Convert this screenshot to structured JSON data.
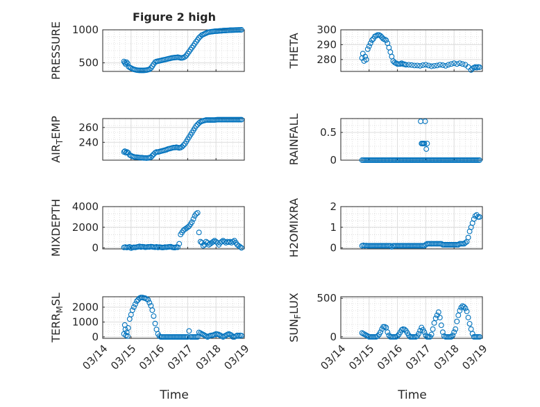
{
  "figure": {
    "title": "Figure 2 high",
    "time_label": "Time"
  },
  "time_ticks": [
    "03/14",
    "03/15",
    "03/16",
    "03/17",
    "03/18",
    "03/19"
  ],
  "colors": {
    "marker": "#0072bd",
    "axes": "#262626",
    "grid": "#dcdcdc"
  },
  "chart_data": [
    {
      "type": "scatter",
      "ylabel": "PRESSURE",
      "title": "Figure 2 high",
      "xlim": [
        0,
        5
      ],
      "ylim": [
        370,
        1000
      ],
      "yticks": [
        500,
        1000
      ],
      "x": [
        0.75,
        0.78,
        0.81,
        0.84,
        0.88,
        0.92,
        0.96,
        1.0,
        1.05,
        1.1,
        1.15,
        1.2,
        1.25,
        1.3,
        1.35,
        1.4,
        1.45,
        1.5,
        1.55,
        1.6,
        1.65,
        1.7,
        1.75,
        1.8,
        1.85,
        1.9,
        1.95,
        2.0,
        2.05,
        2.1,
        2.15,
        2.2,
        2.25,
        2.3,
        2.35,
        2.4,
        2.45,
        2.5,
        2.55,
        2.6,
        2.65,
        2.7,
        2.75,
        2.8,
        2.85,
        2.9,
        2.95,
        3.0,
        3.05,
        3.1,
        3.15,
        3.2,
        3.25,
        3.3,
        3.35,
        3.4,
        3.45,
        3.5,
        3.55,
        3.6,
        3.65,
        3.7,
        3.75,
        3.8,
        3.85,
        3.9,
        3.95,
        4.0,
        4.05,
        4.1,
        4.15,
        4.2,
        4.25,
        4.3,
        4.35,
        4.4,
        4.45,
        4.5,
        4.55,
        4.6,
        4.65,
        4.7,
        4.75,
        4.8,
        4.85,
        4.9
      ],
      "values": [
        520,
        500,
        480,
        510,
        490,
        440,
        430,
        420,
        410,
        400,
        395,
        390,
        388,
        386,
        386,
        385,
        386,
        388,
        390,
        395,
        400,
        420,
        450,
        480,
        510,
        520,
        525,
        530,
        535,
        540,
        545,
        550,
        555,
        560,
        565,
        570,
        575,
        578,
        580,
        582,
        585,
        580,
        575,
        575,
        580,
        590,
        610,
        640,
        670,
        700,
        730,
        760,
        790,
        820,
        850,
        880,
        900,
        920,
        930,
        940,
        950,
        960,
        965,
        970,
        972,
        975,
        978,
        980,
        980,
        982,
        985,
        985,
        988,
        990,
        990,
        992,
        993,
        995,
        995,
        996,
        997,
        998,
        998,
        999,
        999,
        1000
      ]
    },
    {
      "type": "scatter",
      "ylabel": "THETA",
      "xlim": [
        0,
        5
      ],
      "ylim": [
        272,
        300
      ],
      "yticks": [
        280,
        290,
        300
      ],
      "x": [
        0.75,
        0.78,
        0.82,
        0.86,
        0.9,
        0.95,
        1.0,
        1.05,
        1.1,
        1.15,
        1.2,
        1.25,
        1.3,
        1.35,
        1.4,
        1.45,
        1.5,
        1.55,
        1.6,
        1.65,
        1.7,
        1.75,
        1.8,
        1.85,
        1.9,
        1.95,
        2.0,
        2.05,
        2.1,
        2.15,
        2.2,
        2.25,
        2.3,
        2.4,
        2.5,
        2.6,
        2.7,
        2.8,
        2.9,
        3.0,
        3.1,
        3.2,
        3.3,
        3.4,
        3.5,
        3.6,
        3.7,
        3.8,
        3.9,
        4.0,
        4.1,
        4.2,
        4.3,
        4.4,
        4.5,
        4.6,
        4.65,
        4.7,
        4.75,
        4.8,
        4.85,
        4.9
      ],
      "values": [
        281,
        284,
        279,
        282,
        280,
        287,
        289,
        291,
        293,
        294,
        295.5,
        296,
        296.5,
        296.5,
        296,
        295,
        294,
        293.5,
        293,
        291,
        288,
        285,
        282,
        279,
        278,
        277.5,
        277,
        277,
        277,
        277.5,
        277,
        276.8,
        276.5,
        276.5,
        276.3,
        276,
        276,
        275.8,
        276.2,
        276.5,
        276,
        275.5,
        275.8,
        276,
        276.5,
        276.2,
        275.8,
        276.5,
        277,
        277.5,
        277,
        277.5,
        277,
        276.5,
        275,
        273,
        274,
        274.5,
        275,
        274.5,
        275,
        274.8
      ]
    },
    {
      "type": "scatter",
      "ylabel": "AIR_TEMP",
      "xlim": [
        0,
        5
      ],
      "ylim": [
        216,
        272
      ],
      "yticks": [
        240,
        260
      ],
      "x": [
        0.75,
        0.78,
        0.82,
        0.86,
        0.9,
        0.95,
        1.0,
        1.05,
        1.1,
        1.15,
        1.2,
        1.25,
        1.3,
        1.35,
        1.4,
        1.45,
        1.5,
        1.55,
        1.6,
        1.65,
        1.7,
        1.75,
        1.8,
        1.85,
        1.9,
        1.95,
        2.0,
        2.05,
        2.1,
        2.15,
        2.2,
        2.25,
        2.3,
        2.35,
        2.4,
        2.45,
        2.5,
        2.55,
        2.6,
        2.65,
        2.7,
        2.75,
        2.8,
        2.85,
        2.9,
        2.95,
        3.0,
        3.05,
        3.1,
        3.15,
        3.2,
        3.25,
        3.3,
        3.35,
        3.4,
        3.45,
        3.5,
        3.55,
        3.6,
        3.65,
        3.7,
        3.75,
        3.8,
        3.85,
        3.9,
        3.95,
        4.0,
        4.05,
        4.1,
        4.15,
        4.2,
        4.25,
        4.3,
        4.35,
        4.4,
        4.45,
        4.5,
        4.55,
        4.6,
        4.65,
        4.7,
        4.75,
        4.8,
        4.85,
        4.9
      ],
      "values": [
        227,
        228,
        226,
        227,
        226,
        223,
        222,
        221,
        220.5,
        220,
        220,
        219.8,
        219.5,
        219.5,
        219.3,
        219,
        219,
        218.8,
        219,
        219.5,
        220,
        222,
        224,
        226,
        227,
        227,
        227.5,
        228,
        228.5,
        229,
        229.5,
        230,
        231,
        231.5,
        232,
        232.5,
        233,
        233,
        233.5,
        233,
        232.5,
        233,
        234,
        236,
        238,
        241,
        244,
        247,
        250,
        253,
        256,
        259,
        262,
        264,
        266,
        267.5,
        268.5,
        269,
        269.5,
        270,
        270,
        270,
        270,
        270,
        270,
        270,
        270.3,
        270.5,
        270.5,
        270.5,
        270.5,
        270.5,
        270.5,
        270.5,
        270.5,
        270.5,
        270.5,
        270.5,
        270.5,
        270.5,
        270.5,
        270.5,
        270.5,
        270.5,
        270.5
      ]
    },
    {
      "type": "scatter",
      "ylabel": "RAINFALL",
      "xlim": [
        0,
        5
      ],
      "ylim": [
        0,
        0.75
      ],
      "yticks": [
        0,
        0.5
      ],
      "x": [
        0.75,
        0.8,
        0.85,
        0.9,
        0.95,
        1.0,
        1.05,
        1.1,
        1.15,
        1.2,
        1.25,
        1.3,
        1.35,
        1.4,
        1.45,
        1.5,
        1.55,
        1.6,
        1.65,
        1.7,
        1.75,
        1.8,
        1.85,
        1.9,
        1.95,
        2.0,
        2.05,
        2.1,
        2.15,
        2.2,
        2.25,
        2.3,
        2.35,
        2.4,
        2.45,
        2.5,
        2.55,
        2.6,
        2.65,
        2.7,
        2.75,
        2.8,
        2.85,
        2.9,
        2.95,
        3.0,
        3.05,
        3.1,
        3.15,
        3.2,
        3.25,
        3.3,
        3.35,
        3.4,
        3.45,
        3.5,
        3.55,
        3.6,
        3.65,
        3.7,
        3.75,
        3.8,
        3.85,
        3.9,
        3.95,
        4.0,
        4.05,
        4.1,
        4.15,
        4.2,
        4.25,
        4.3,
        4.35,
        4.4,
        4.45,
        4.5,
        4.55,
        4.6,
        4.65,
        4.7,
        4.75,
        4.8,
        4.85,
        4.9,
        2.82,
        2.85,
        2.88,
        2.92,
        2.95,
        2.98,
        3.02,
        3.05
      ],
      "values": [
        0,
        0,
        0,
        0,
        0,
        0,
        0,
        0,
        0,
        0,
        0,
        0,
        0,
        0,
        0,
        0,
        0,
        0,
        0,
        0,
        0,
        0,
        0,
        0,
        0,
        0,
        0,
        0,
        0,
        0,
        0,
        0,
        0,
        0,
        0,
        0,
        0,
        0,
        0,
        0,
        0,
        0,
        0,
        0,
        0,
        0,
        0,
        0,
        0,
        0,
        0,
        0,
        0,
        0,
        0,
        0,
        0,
        0,
        0,
        0,
        0,
        0,
        0,
        0,
        0,
        0,
        0,
        0,
        0,
        0,
        0,
        0,
        0,
        0,
        0,
        0,
        0,
        0,
        0,
        0,
        0,
        0,
        0,
        0,
        0.7,
        0.3,
        0.3,
        0.3,
        0.3,
        0.7,
        0.2,
        0.3
      ]
    },
    {
      "type": "scatter",
      "ylabel": "MIXDEPTH",
      "xlim": [
        0,
        5
      ],
      "ylim": [
        -100,
        4000
      ],
      "yticks": [
        0,
        2000,
        4000
      ],
      "x": [
        0.75,
        0.8,
        0.85,
        0.9,
        0.95,
        1.0,
        1.05,
        1.1,
        1.15,
        1.2,
        1.25,
        1.3,
        1.35,
        1.4,
        1.45,
        1.5,
        1.55,
        1.6,
        1.65,
        1.7,
        1.75,
        1.8,
        1.85,
        1.9,
        1.95,
        2.0,
        2.05,
        2.1,
        2.15,
        2.2,
        2.25,
        2.3,
        2.35,
        2.4,
        2.45,
        2.5,
        2.55,
        2.6,
        2.65,
        2.7,
        2.75,
        2.8,
        2.85,
        2.9,
        2.95,
        3.0,
        3.05,
        3.1,
        3.15,
        3.2,
        3.25,
        3.3,
        3.35,
        3.4,
        3.45,
        3.5,
        3.55,
        3.6,
        3.65,
        3.7,
        3.75,
        3.8,
        3.85,
        3.9,
        3.95,
        4.0,
        4.05,
        4.1,
        4.15,
        4.2,
        4.25,
        4.3,
        4.35,
        4.4,
        4.45,
        4.5,
        4.55,
        4.6,
        4.65,
        4.7,
        4.75,
        4.8,
        4.85,
        4.9
      ],
      "values": [
        50,
        80,
        40,
        60,
        100,
        -20,
        30,
        60,
        50,
        80,
        100,
        150,
        80,
        120,
        100,
        60,
        80,
        100,
        90,
        120,
        100,
        80,
        60,
        100,
        50,
        80,
        60,
        40,
        50,
        80,
        60,
        90,
        100,
        120,
        60,
        40,
        30,
        80,
        60,
        400,
        1300,
        1500,
        1700,
        1800,
        1900,
        2000,
        2100,
        2300,
        2500,
        2800,
        3100,
        3300,
        3400,
        1500,
        600,
        500,
        200,
        300,
        600,
        500,
        300,
        400,
        500,
        600,
        700,
        600,
        500,
        300,
        500,
        600,
        700,
        600,
        500,
        600,
        550,
        600,
        500,
        600,
        700,
        500,
        300,
        200,
        100,
        0
      ]
    },
    {
      "type": "scatter",
      "ylabel": "H2OMIXRA",
      "xlim": [
        0,
        5
      ],
      "ylim": [
        -0.05,
        2
      ],
      "yticks": [
        0,
        1,
        2
      ],
      "x": [
        0.75,
        0.8,
        0.85,
        0.9,
        0.95,
        1.0,
        1.05,
        1.1,
        1.15,
        1.2,
        1.25,
        1.3,
        1.35,
        1.4,
        1.45,
        1.5,
        1.55,
        1.6,
        1.65,
        1.7,
        1.75,
        1.8,
        1.85,
        1.9,
        1.95,
        2.0,
        2.05,
        2.1,
        2.15,
        2.2,
        2.25,
        2.3,
        2.35,
        2.4,
        2.45,
        2.5,
        2.55,
        2.6,
        2.65,
        2.7,
        2.75,
        2.8,
        2.85,
        2.9,
        2.95,
        3.0,
        3.05,
        3.1,
        3.15,
        3.2,
        3.25,
        3.3,
        3.35,
        3.4,
        3.45,
        3.5,
        3.55,
        3.6,
        3.65,
        3.7,
        3.75,
        3.8,
        3.85,
        3.9,
        3.95,
        4.0,
        4.05,
        4.1,
        4.15,
        4.2,
        4.25,
        4.3,
        4.35,
        4.4,
        4.45,
        4.5,
        4.55,
        4.6,
        4.65,
        4.7,
        4.75,
        4.8,
        4.85,
        4.9
      ],
      "values": [
        0.1,
        0.12,
        0.1,
        0.11,
        0.1,
        0.1,
        0.1,
        0.1,
        0.1,
        0.1,
        0.1,
        0.1,
        0.1,
        0.1,
        0.1,
        0.1,
        0.1,
        0.1,
        0.1,
        0.1,
        0.1,
        0.05,
        0.1,
        0.1,
        0.1,
        0.1,
        0.1,
        0.1,
        0.1,
        0.1,
        0.1,
        0.1,
        0.1,
        0.1,
        0.1,
        0.1,
        0.1,
        0.1,
        0.1,
        0.1,
        0.1,
        0.1,
        0.1,
        0.1,
        0.1,
        0.15,
        0.2,
        0.2,
        0.2,
        0.2,
        0.2,
        0.2,
        0.2,
        0.2,
        0.2,
        0.2,
        0.2,
        0.15,
        0.15,
        0.15,
        0.15,
        0.15,
        0.15,
        0.15,
        0.15,
        0.15,
        0.15,
        0.15,
        0.15,
        0.2,
        0.2,
        0.2,
        0.2,
        0.25,
        0.3,
        0.5,
        0.8,
        1.0,
        1.2,
        1.4,
        1.55,
        1.6,
        1.5,
        1.5
      ]
    },
    {
      "type": "scatter",
      "ylabel": "TERR_MSL",
      "xlim": [
        0,
        5
      ],
      "ylim": [
        -100,
        2700
      ],
      "yticks": [
        0,
        1000,
        2000
      ],
      "x": [
        0.75,
        0.78,
        0.8,
        0.82,
        0.85,
        0.88,
        0.9,
        0.95,
        1.0,
        1.05,
        1.1,
        1.15,
        1.2,
        1.25,
        1.3,
        1.35,
        1.4,
        1.45,
        1.5,
        1.55,
        1.6,
        1.65,
        1.7,
        1.75,
        1.8,
        1.85,
        1.9,
        1.95,
        2.0,
        2.05,
        2.1,
        2.15,
        2.2,
        2.25,
        2.3,
        2.35,
        2.4,
        2.45,
        2.5,
        2.55,
        2.6,
        2.65,
        2.7,
        2.75,
        2.8,
        2.85,
        2.9,
        2.95,
        3.0,
        3.05,
        3.1,
        3.15,
        3.2,
        3.25,
        3.3,
        3.35,
        3.4,
        3.45,
        3.5,
        3.55,
        3.6,
        3.65,
        3.7,
        3.75,
        3.8,
        3.85,
        3.9,
        3.95,
        4.0,
        4.05,
        4.1,
        4.15,
        4.2,
        4.25,
        4.3,
        4.35,
        4.4,
        4.45,
        4.5,
        4.55,
        4.6,
        4.65,
        4.7,
        4.75,
        4.8,
        4.85,
        4.9
      ],
      "values": [
        200,
        800,
        500,
        100,
        300,
        50,
        600,
        1200,
        1500,
        1800,
        2000,
        2200,
        2400,
        2500,
        2600,
        2650,
        2650,
        2620,
        2600,
        2550,
        2500,
        2300,
        2100,
        1800,
        1400,
        900,
        500,
        200,
        50,
        0,
        0,
        0,
        0,
        0,
        0,
        0,
        0,
        0,
        0,
        0,
        0,
        0,
        0,
        0,
        0,
        0,
        0,
        0,
        0,
        400,
        0,
        0,
        0,
        0,
        0,
        0,
        300,
        250,
        200,
        150,
        100,
        50,
        0,
        50,
        80,
        100,
        120,
        150,
        200,
        180,
        150,
        100,
        50,
        0,
        50,
        100,
        150,
        200,
        150,
        100,
        0,
        0,
        50,
        100,
        50,
        100,
        80
      ]
    },
    {
      "type": "scatter",
      "ylabel": "SUN_FLUX",
      "xlim": [
        0,
        5
      ],
      "ylim": [
        -20,
        520
      ],
      "yticks": [
        0,
        500
      ],
      "x": [
        0.75,
        0.8,
        0.85,
        0.9,
        0.95,
        1.0,
        1.05,
        1.1,
        1.15,
        1.2,
        1.25,
        1.3,
        1.35,
        1.4,
        1.45,
        1.5,
        1.55,
        1.6,
        1.65,
        1.7,
        1.75,
        1.8,
        1.85,
        1.9,
        1.95,
        2.0,
        2.05,
        2.1,
        2.15,
        2.2,
        2.25,
        2.3,
        2.35,
        2.4,
        2.45,
        2.5,
        2.55,
        2.6,
        2.65,
        2.7,
        2.75,
        2.8,
        2.85,
        2.9,
        2.95,
        3.0,
        3.05,
        3.1,
        3.15,
        3.2,
        3.25,
        3.3,
        3.35,
        3.4,
        3.45,
        3.5,
        3.55,
        3.6,
        3.65,
        3.7,
        3.75,
        3.8,
        3.85,
        3.9,
        3.95,
        4.0,
        4.05,
        4.1,
        4.15,
        4.2,
        4.25,
        4.3,
        4.35,
        4.4,
        4.45,
        4.5,
        4.55,
        4.6,
        4.65,
        4.7,
        4.75,
        4.8,
        4.85,
        4.9
      ],
      "values": [
        50,
        40,
        30,
        20,
        10,
        0,
        0,
        0,
        0,
        0,
        0,
        10,
        30,
        60,
        100,
        130,
        130,
        120,
        60,
        20,
        0,
        0,
        0,
        0,
        0,
        10,
        30,
        60,
        90,
        100,
        95,
        80,
        50,
        20,
        0,
        0,
        0,
        0,
        0,
        10,
        40,
        80,
        120,
        90,
        60,
        20,
        0,
        0,
        0,
        30,
        100,
        180,
        240,
        280,
        320,
        250,
        150,
        60,
        10,
        0,
        0,
        0,
        0,
        0,
        20,
        60,
        100,
        200,
        280,
        340,
        380,
        400,
        390,
        370,
        330,
        250,
        170,
        100,
        40,
        0,
        0,
        0,
        0,
        0
      ]
    }
  ]
}
